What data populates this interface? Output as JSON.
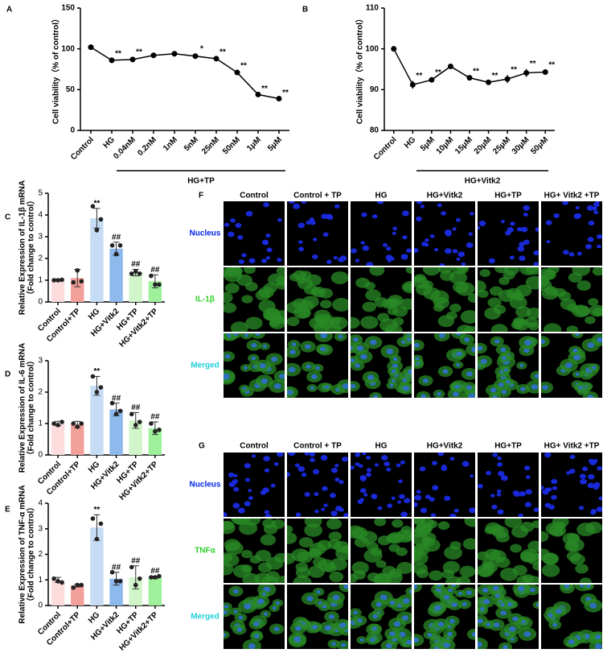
{
  "chart_data": [
    {
      "type": "line",
      "panel": "A",
      "ylabel": [
        "Cell viability（% of control）"
      ],
      "group_label": "HG+TP",
      "categories": [
        "Control",
        "HG",
        "0.04nM",
        "0.2nM",
        "1nM",
        "5nM",
        "25nM",
        "50nM",
        "1μM",
        "5μM"
      ],
      "values": [
        102,
        86,
        87,
        92,
        94,
        91,
        88,
        71,
        44,
        39
      ],
      "errors": [
        1,
        2,
        3,
        2,
        1,
        3,
        2,
        2,
        1,
        1
      ],
      "annotations": [
        null,
        "**",
        "**",
        null,
        null,
        "*",
        "**",
        "**",
        "**",
        "**"
      ],
      "color": "#000000",
      "ylim": [
        0,
        150
      ],
      "yticks": [
        0,
        50,
        100,
        150
      ]
    },
    {
      "type": "line",
      "panel": "B",
      "ylabel": [
        "Cell viability（% of control）"
      ],
      "group_label": "HG+Vitk2",
      "categories": [
        "Control",
        "HG",
        "5μM",
        "10μM",
        "15μM",
        "20μM",
        "25μM",
        "30μM",
        "50μM"
      ],
      "values": [
        100,
        91.2,
        92.4,
        95.7,
        92.9,
        91.8,
        92.6,
        94.1,
        94.3
      ],
      "errors": [
        0.4,
        1,
        0.6,
        0.2,
        0.4,
        0.4,
        1,
        1,
        0.5
      ],
      "annotations": [
        null,
        "**",
        "**",
        null,
        "**",
        "**",
        "**",
        "**",
        "**"
      ],
      "color": "#000000",
      "ylim": [
        80,
        110
      ],
      "yticks": [
        80,
        90,
        100,
        110
      ]
    },
    {
      "type": "bar",
      "panel": "C",
      "ylabel": [
        "Relative Expression of IL-1β mRNA",
        "（Fold change to control）"
      ],
      "categories": [
        "Control",
        "Control+TP",
        "HG",
        "HG+Vitk2",
        "HG+TP",
        "HG+Vitk2+TP"
      ],
      "colors": [
        "#fcdcdc",
        "#f4a09a",
        "#c6dcf4",
        "#8db9ec",
        "#d0f5c8",
        "#9ef09a"
      ],
      "values": [
        1.0,
        1.1,
        3.85,
        2.45,
        1.35,
        0.95
      ],
      "errors": [
        0.05,
        0.4,
        0.45,
        0.3,
        0.15,
        0.3
      ],
      "points": [
        [
          1.0,
          1.0,
          1.02
        ],
        [
          0.9,
          1.45,
          0.95
        ],
        [
          4.4,
          3.3,
          3.8
        ],
        [
          2.6,
          2.2,
          2.6
        ],
        [
          1.3,
          1.4,
          1.3
        ],
        [
          1.2,
          0.8,
          0.8
        ]
      ],
      "annotations": [
        null,
        null,
        "**",
        "##",
        "##",
        "##"
      ],
      "ylim": [
        0,
        5
      ],
      "yticks": [
        0,
        1,
        2,
        3,
        4,
        5
      ]
    },
    {
      "type": "bar",
      "panel": "D",
      "ylabel": [
        "Relative Expression of IL-6 mRNA",
        "（Fold change to control）"
      ],
      "categories": [
        "Control",
        "Control+TP",
        "HG",
        "HG+Vitk2",
        "HG+TP",
        "HG+Vitk2+TP"
      ],
      "colors": [
        "#fcdcdc",
        "#f4a09a",
        "#c6dcf4",
        "#8db9ec",
        "#d0f5c8",
        "#9ef09a"
      ],
      "values": [
        1.0,
        0.97,
        2.2,
        1.45,
        1.1,
        0.85
      ],
      "errors": [
        0.07,
        0.1,
        0.3,
        0.2,
        0.25,
        0.2
      ],
      "points": [
        [
          1.0,
          0.95,
          1.05
        ],
        [
          1.0,
          0.9,
          1.0
        ],
        [
          2.5,
          2.0,
          2.15
        ],
        [
          1.65,
          1.3,
          1.4
        ],
        [
          1.3,
          0.95,
          1.05
        ],
        [
          1.0,
          0.75,
          0.8
        ]
      ],
      "annotations": [
        null,
        null,
        "**",
        "##",
        "##",
        "##"
      ],
      "ylim": [
        0,
        3
      ],
      "yticks": [
        0,
        1,
        2,
        3
      ]
    },
    {
      "type": "bar",
      "panel": "E",
      "ylabel": [
        "Relative Expression of TNF-α mRNA",
        "（Fold change to control）"
      ],
      "categories": [
        "Control",
        "Control+TP",
        "HG",
        "HG+Vitk2",
        "HG+TP",
        "HG+Vitk2+TP"
      ],
      "colors": [
        "#fcdcdc",
        "#f4a09a",
        "#c6dcf4",
        "#8db9ec",
        "#d0f5c8",
        "#9ef09a"
      ],
      "values": [
        1.0,
        0.78,
        3.05,
        1.05,
        1.1,
        1.1
      ],
      "errors": [
        0.1,
        0.05,
        0.5,
        0.25,
        0.45,
        0.05
      ],
      "points": [
        [
          1.05,
          0.95,
          0.9
        ],
        [
          0.7,
          0.8,
          0.8
        ],
        [
          3.4,
          2.6,
          3.2
        ],
        [
          1.3,
          0.95,
          0.95
        ],
        [
          1.5,
          0.8,
          1.05
        ],
        [
          1.1,
          1.1,
          1.15
        ]
      ],
      "annotations": [
        null,
        null,
        "**",
        "##",
        "##",
        "##"
      ],
      "ylim": [
        0,
        4
      ],
      "yticks": [
        0,
        1,
        2,
        3,
        4
      ]
    }
  ],
  "image_panels": [
    {
      "panel": "F",
      "columns": [
        "Control",
        "Control + TP",
        "HG",
        "HG+Vitk2",
        "HG+TP",
        "HG+ Vitk2 +TP"
      ],
      "rows": [
        "Nucleus",
        "IL-1β",
        "Merged"
      ]
    },
    {
      "panel": "G",
      "columns": [
        "Control",
        "Control + TP",
        "HG",
        "HG+Vitk2",
        "HG+TP",
        "HG+ Vitk2 +TP"
      ],
      "rows": [
        "Nucleus",
        "TNFα",
        "Merged"
      ]
    }
  ]
}
